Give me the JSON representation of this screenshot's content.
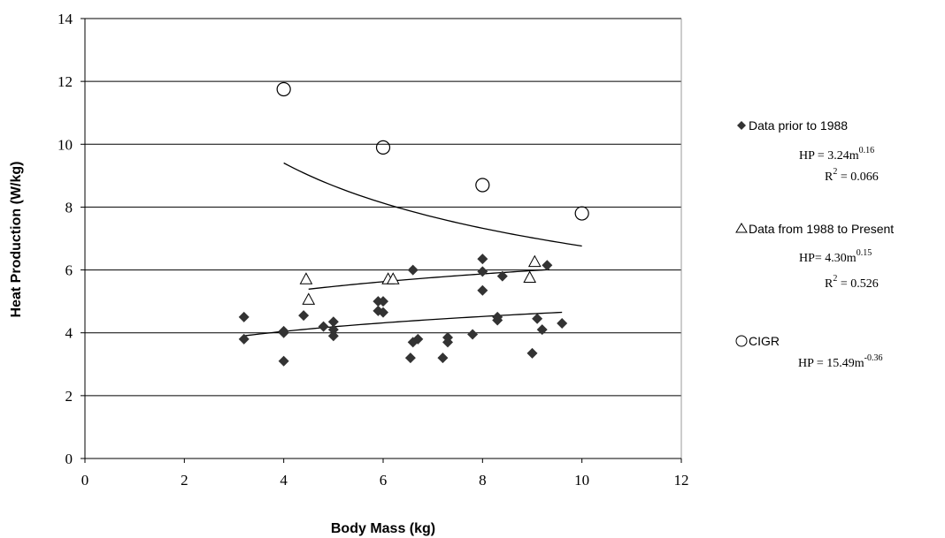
{
  "chart_data": {
    "type": "scatter",
    "title": "",
    "xlabel": "Body Mass (kg)",
    "ylabel": "Heat Production (W/kg)",
    "xlim": [
      0,
      12
    ],
    "ylim": [
      0,
      14
    ],
    "x_ticks": [
      "0",
      "2",
      "4",
      "6",
      "8",
      "10",
      "12"
    ],
    "y_ticks": [
      "0",
      "2",
      "4",
      "6",
      "8",
      "10",
      "12",
      "14"
    ],
    "grid": "horizontal",
    "legend_position": "right",
    "series": [
      {
        "name": "Data prior to 1988",
        "marker": "diamond-filled",
        "color": "#333333",
        "equation": "HP = 3.24m",
        "exponent": "0.16",
        "r2_prefix": "R",
        "r2_sup": "2",
        "r2_value": " = 0.066",
        "fit": {
          "a": 3.24,
          "b": 0.16,
          "x_range": [
            3.2,
            9.6
          ]
        },
        "points": [
          [
            3.2,
            3.8
          ],
          [
            3.2,
            4.5
          ],
          [
            4.0,
            3.1
          ],
          [
            4.0,
            4.0
          ],
          [
            4.0,
            4.05
          ],
          [
            4.4,
            4.55
          ],
          [
            4.8,
            4.2
          ],
          [
            5.0,
            3.9
          ],
          [
            5.0,
            4.1
          ],
          [
            5.0,
            4.35
          ],
          [
            5.9,
            4.7
          ],
          [
            5.9,
            5.0
          ],
          [
            6.0,
            4.65
          ],
          [
            6.0,
            5.0
          ],
          [
            6.55,
            3.2
          ],
          [
            6.6,
            3.7
          ],
          [
            6.6,
            6.0
          ],
          [
            6.7,
            3.8
          ],
          [
            7.2,
            3.2
          ],
          [
            7.3,
            3.7
          ],
          [
            7.3,
            3.85
          ],
          [
            7.8,
            3.95
          ],
          [
            8.0,
            5.35
          ],
          [
            8.0,
            5.95
          ],
          [
            8.0,
            6.35
          ],
          [
            8.3,
            4.4
          ],
          [
            8.3,
            4.5
          ],
          [
            8.4,
            5.8
          ],
          [
            9.0,
            3.35
          ],
          [
            9.1,
            4.45
          ],
          [
            9.2,
            4.1
          ],
          [
            9.3,
            6.15
          ],
          [
            9.6,
            4.3
          ]
        ]
      },
      {
        "name": "Data from 1988 to Present",
        "marker": "triangle-open",
        "color": "#000000",
        "equation": "HP= 4.30m",
        "exponent": "0.15",
        "r2_prefix": "R",
        "r2_sup": "2",
        "r2_value": " = 0.526",
        "fit": {
          "a": 4.3,
          "b": 0.15,
          "x_range": [
            4.5,
            9.35
          ]
        },
        "points": [
          [
            4.45,
            5.7
          ],
          [
            4.5,
            5.05
          ],
          [
            6.1,
            5.7
          ],
          [
            6.2,
            5.7
          ],
          [
            8.95,
            5.75
          ],
          [
            9.05,
            6.25
          ]
        ]
      },
      {
        "name": "CIGR",
        "marker": "circle-open",
        "color": "#000000",
        "equation": "HP = 15.49m",
        "exponent": "-0.36",
        "fit": {
          "a": 15.49,
          "b": -0.36,
          "x_range": [
            4.0,
            10.0
          ]
        },
        "points": [
          [
            4.0,
            11.75
          ],
          [
            6.0,
            9.9
          ],
          [
            8.0,
            8.7
          ],
          [
            10.0,
            7.8
          ]
        ]
      }
    ]
  }
}
